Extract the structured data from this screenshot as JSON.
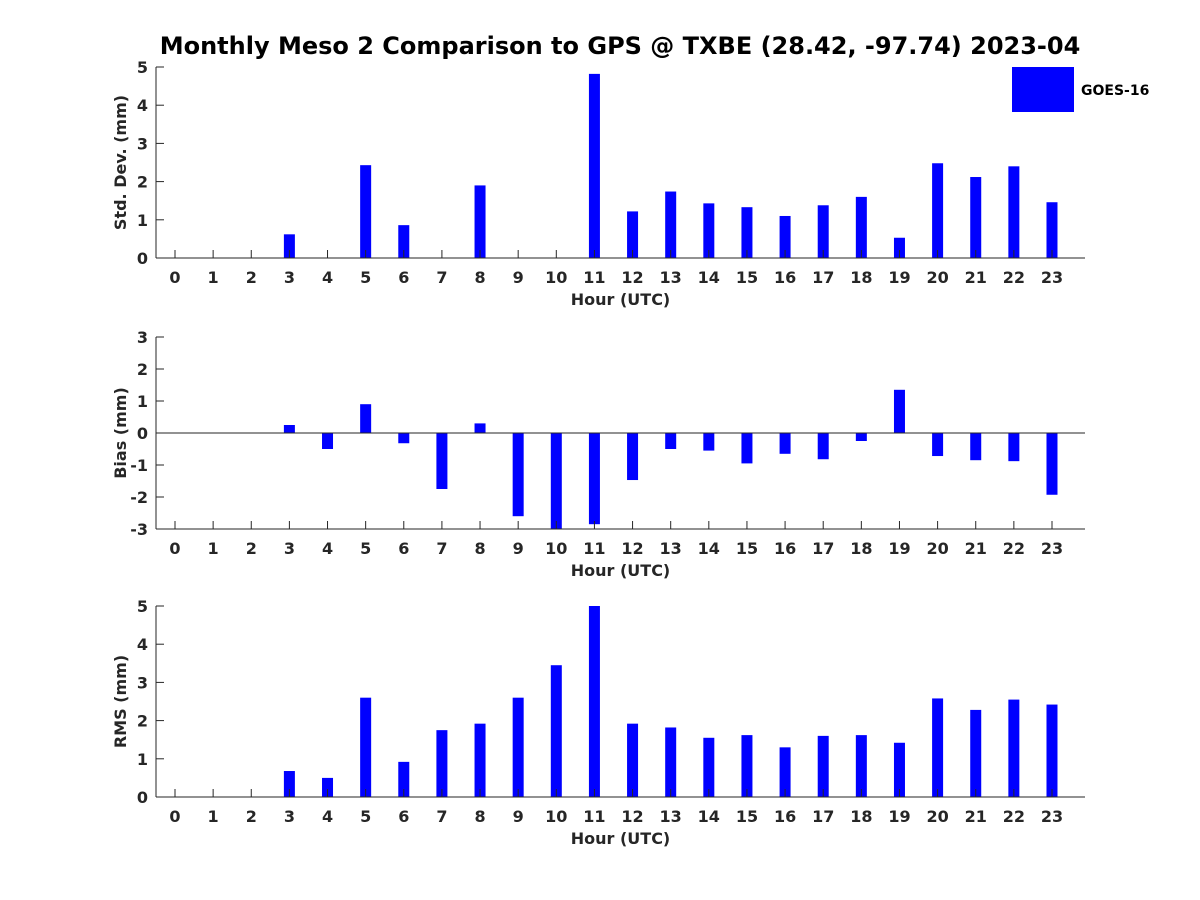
{
  "title": "Monthly Meso 2 Comparison to GPS @ TXBE (28.42, -97.74) 2023-04",
  "legend": {
    "label": "GOES-16",
    "color": "#0000ff",
    "placement": "top-right"
  },
  "bar_color": "#0000ff",
  "chart_data": [
    {
      "type": "bar",
      "xlabel": "Hour (UTC)",
      "ylabel": "Std. Dev. (mm)",
      "ylim": [
        0,
        5
      ],
      "yticks": [
        0,
        1,
        2,
        3,
        4,
        5
      ],
      "categories": [
        0,
        1,
        2,
        3,
        4,
        5,
        6,
        7,
        8,
        9,
        10,
        11,
        12,
        13,
        14,
        15,
        16,
        17,
        18,
        19,
        20,
        21,
        22,
        23
      ],
      "series": [
        {
          "name": "GOES-16",
          "values": [
            null,
            null,
            null,
            0.62,
            null,
            2.43,
            0.86,
            null,
            1.9,
            null,
            null,
            4.82,
            1.22,
            1.74,
            1.43,
            1.33,
            1.1,
            1.38,
            1.6,
            0.53,
            2.48,
            2.12,
            2.4,
            1.46
          ]
        }
      ]
    },
    {
      "type": "bar",
      "xlabel": "Hour (UTC)",
      "ylabel": "Bias (mm)",
      "ylim": [
        -3,
        3
      ],
      "yticks": [
        -3,
        -2,
        -1,
        0,
        1,
        2,
        3
      ],
      "categories": [
        0,
        1,
        2,
        3,
        4,
        5,
        6,
        7,
        8,
        9,
        10,
        11,
        12,
        13,
        14,
        15,
        16,
        17,
        18,
        19,
        20,
        21,
        22,
        23
      ],
      "series": [
        {
          "name": "GOES-16",
          "values": [
            null,
            null,
            null,
            0.25,
            -0.5,
            0.9,
            -0.32,
            -1.75,
            0.3,
            -2.6,
            -3.0,
            -2.85,
            -1.47,
            -0.5,
            -0.55,
            -0.95,
            -0.65,
            -0.82,
            -0.25,
            1.35,
            -0.72,
            -0.85,
            -0.88,
            -1.93
          ]
        }
      ]
    },
    {
      "type": "bar",
      "xlabel": "Hour (UTC)",
      "ylabel": "RMS (mm)",
      "ylim": [
        0,
        5
      ],
      "yticks": [
        0,
        1,
        2,
        3,
        4,
        5
      ],
      "categories": [
        0,
        1,
        2,
        3,
        4,
        5,
        6,
        7,
        8,
        9,
        10,
        11,
        12,
        13,
        14,
        15,
        16,
        17,
        18,
        19,
        20,
        21,
        22,
        23
      ],
      "series": [
        {
          "name": "GOES-16",
          "values": [
            null,
            null,
            null,
            0.68,
            0.5,
            2.6,
            0.92,
            1.75,
            1.92,
            2.6,
            3.45,
            5.0,
            1.92,
            1.82,
            1.55,
            1.62,
            1.3,
            1.6,
            1.62,
            1.42,
            2.58,
            2.28,
            2.55,
            2.42
          ]
        }
      ]
    }
  ]
}
